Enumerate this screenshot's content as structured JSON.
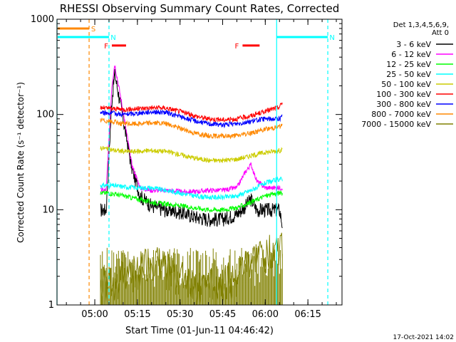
{
  "chart_data": {
    "type": "line",
    "title": "RHESSI Observing Summary Count Rates, Corrected",
    "xlabel": "Start Time (01-Jun-11 04:46:42)",
    "ylabel": "Corrected Count Rate (s⁻¹ detector⁻¹)",
    "y_scale": "log",
    "ylim": [
      1,
      1000
    ],
    "xlim": [
      "04:46:42",
      "06:27:00"
    ],
    "x_tick_labels": [
      "05:00",
      "05:15",
      "05:30",
      "05:45",
      "06:00",
      "06:15"
    ],
    "y_tick_labels": [
      "1",
      "10",
      "100",
      "1000"
    ],
    "legend": {
      "position": "right",
      "header": [
        "Det 1,3,4,5,6,9,",
        "Att 0"
      ]
    },
    "series": [
      {
        "name": "3 - 6 keV",
        "color": "#000000",
        "x": [
          "05:02",
          "05:04",
          "05:06",
          "05:07",
          "05:09",
          "05:11",
          "05:13",
          "05:16",
          "05:20",
          "05:25",
          "05:30",
          "05:35",
          "05:40",
          "05:45",
          "05:50",
          "05:53",
          "05:55",
          "05:57",
          "06:00",
          "06:03",
          "06:05",
          "06:06"
        ],
        "y": [
          10,
          10,
          140,
          270,
          130,
          60,
          28,
          14,
          11,
          10,
          9.5,
          8.5,
          8,
          8,
          9,
          11,
          13,
          10,
          10,
          10,
          10,
          7
        ]
      },
      {
        "name": "6 - 12 keV",
        "color": "#ff00ff",
        "x": [
          "05:02",
          "05:04",
          "05:06",
          "05:07",
          "05:09",
          "05:11",
          "05:13",
          "05:16",
          "05:20",
          "05:25",
          "05:30",
          "05:35",
          "05:40",
          "05:45",
          "05:50",
          "05:53",
          "05:55",
          "05:57",
          "06:00",
          "06:03",
          "06:06"
        ],
        "y": [
          16,
          16,
          200,
          340,
          160,
          70,
          30,
          17,
          16,
          16,
          15.5,
          15.5,
          16,
          16,
          17,
          25,
          30,
          20,
          17,
          17,
          17
        ]
      },
      {
        "name": "12 - 25 keV",
        "color": "#00ff00",
        "x": [
          "05:02",
          "05:05",
          "05:10",
          "05:15",
          "05:20",
          "05:30",
          "05:40",
          "05:45",
          "05:50",
          "05:55",
          "06:00",
          "06:05",
          "06:06"
        ],
        "y": [
          15,
          15,
          14,
          13,
          12,
          11,
          10,
          10,
          10.5,
          12,
          14,
          15,
          15
        ]
      },
      {
        "name": "25 - 50 keV",
        "color": "#00ffff",
        "x": [
          "05:02",
          "05:05",
          "05:10",
          "05:15",
          "05:20",
          "05:25",
          "05:30",
          "05:35",
          "05:40",
          "05:45",
          "05:50",
          "05:55",
          "06:00",
          "06:05",
          "06:06"
        ],
        "y": [
          18,
          18,
          17.5,
          17,
          17,
          16,
          15,
          14,
          13.5,
          13.5,
          14,
          16,
          19,
          21,
          21
        ]
      },
      {
        "name": "50 - 100 keV",
        "color": "#cccc00",
        "x": [
          "05:02",
          "05:05",
          "05:10",
          "05:15",
          "05:20",
          "05:25",
          "05:30",
          "05:35",
          "05:40",
          "05:45",
          "05:50",
          "05:55",
          "06:00",
          "06:05",
          "06:06"
        ],
        "y": [
          45,
          43,
          41,
          41,
          42,
          41,
          38,
          35,
          33,
          33,
          34,
          37,
          40,
          42,
          42
        ]
      },
      {
        "name": "100 - 300 keV",
        "color": "#ff0000",
        "x": [
          "05:02",
          "05:05",
          "05:10",
          "05:15",
          "05:20",
          "05:25",
          "05:30",
          "05:35",
          "05:40",
          "05:45",
          "05:50",
          "05:55",
          "06:00",
          "06:05",
          "06:06"
        ],
        "y": [
          118,
          116,
          113,
          115,
          118,
          117,
          108,
          97,
          90,
          88,
          90,
          97,
          108,
          120,
          135
        ]
      },
      {
        "name": "300 - 800 keV",
        "color": "#0000ff",
        "x": [
          "05:02",
          "05:05",
          "05:10",
          "05:15",
          "05:20",
          "05:25",
          "05:30",
          "05:35",
          "05:40",
          "05:45",
          "05:50",
          "05:55",
          "06:00",
          "06:05",
          "06:06"
        ],
        "y": [
          105,
          104,
          100,
          103,
          107,
          105,
          95,
          86,
          80,
          78,
          80,
          85,
          90,
          90,
          95
        ]
      },
      {
        "name": "800 - 7000 keV",
        "color": "#ff8800",
        "x": [
          "05:02",
          "05:05",
          "05:10",
          "05:15",
          "05:20",
          "05:25",
          "05:30",
          "05:35",
          "05:40",
          "05:45",
          "05:50",
          "05:55",
          "06:00",
          "06:05",
          "06:06"
        ],
        "y": [
          88,
          85,
          80,
          80,
          82,
          80,
          72,
          64,
          60,
          59,
          60,
          64,
          70,
          75,
          75
        ]
      },
      {
        "name": "7000 - 15000 keV",
        "color": "#808000",
        "x": [
          "05:02",
          "05:05",
          "05:10",
          "05:15",
          "05:20",
          "05:25",
          "05:30",
          "05:35",
          "05:40",
          "05:45",
          "05:50",
          "05:55",
          "06:00",
          "06:05",
          "06:06"
        ],
        "y": [
          1.7,
          1.8,
          2,
          2.5,
          3,
          2.5,
          2,
          1.8,
          1.6,
          1.8,
          2.2,
          3,
          3.8,
          4.2,
          4
        ]
      }
    ],
    "annotations": {
      "flag_bars": [
        {
          "label": "S",
          "color": "#ff8800",
          "x_start": "04:46:42",
          "x_end": "04:58:00",
          "y": 800
        },
        {
          "label": "N",
          "color": "#00ffff",
          "x_start": "04:46:42",
          "x_end": "05:05:00",
          "y": 650
        },
        {
          "label": "N",
          "color": "#00ffff",
          "x_start": "06:04:00",
          "x_end": "06:22:00",
          "y": 650
        },
        {
          "label": "F",
          "color": "#ff0000",
          "x_start": "05:06:00",
          "x_end": "05:11:00",
          "y": 530
        },
        {
          "label": "F",
          "color": "#ff0000",
          "x_start": "05:52:00",
          "x_end": "05:58:00",
          "y": 530
        }
      ],
      "vertical_lines": [
        {
          "x": "04:46:42",
          "color": "#00ffff",
          "style": "solid"
        },
        {
          "x": "04:58:00",
          "color": "#ff8800",
          "style": "dashed"
        },
        {
          "x": "05:05:00",
          "color": "#00ffff",
          "style": "dashed"
        },
        {
          "x": "06:04:00",
          "color": "#00ffff",
          "style": "solid"
        },
        {
          "x": "06:22:00",
          "color": "#00ffff",
          "style": "dashed"
        }
      ]
    },
    "footer_text": "17-Oct-2021 14:02",
    "grid": false
  }
}
